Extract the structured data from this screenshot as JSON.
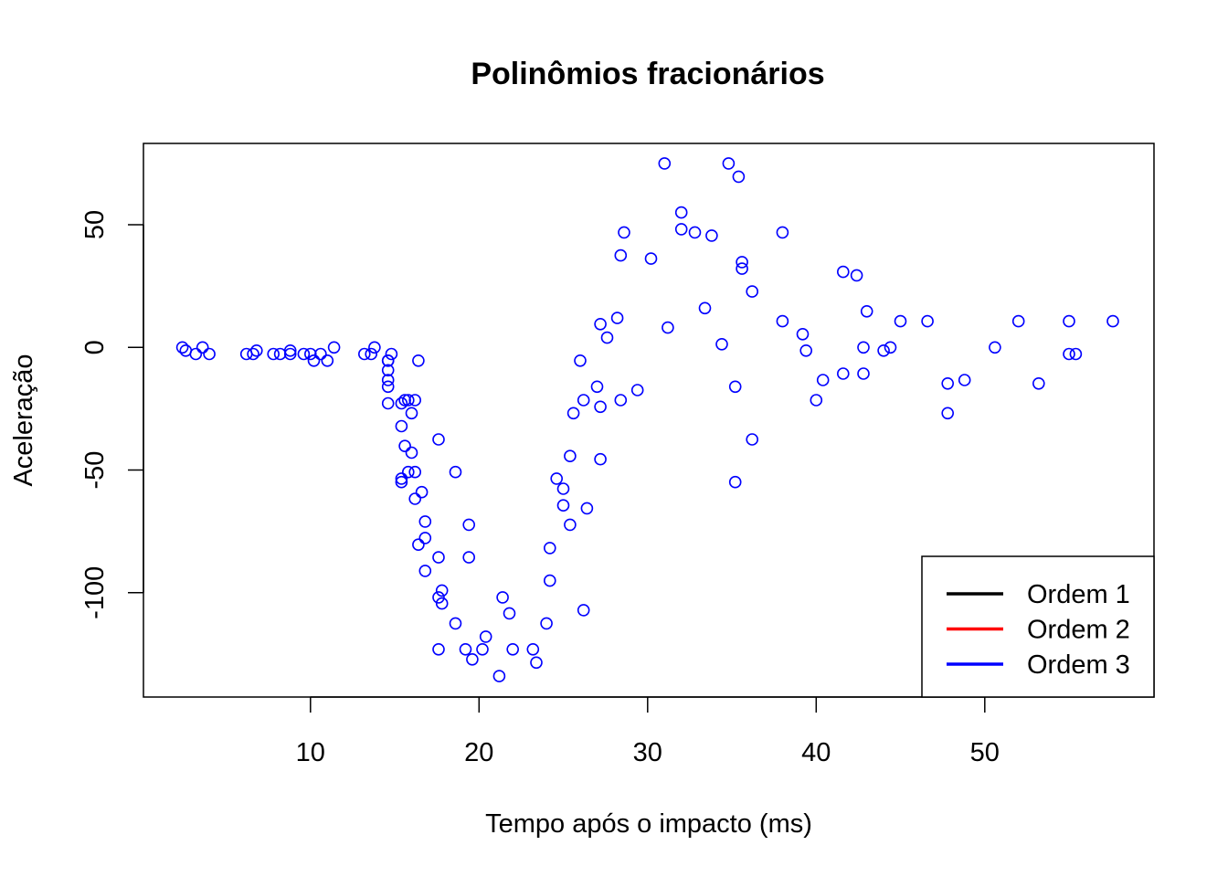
{
  "chart_data": {
    "type": "scatter",
    "title": "Polinômios fracionários",
    "xlabel": "Tempo após o impacto (ms)",
    "ylabel": "Aceleração",
    "xlim": [
      0,
      60
    ],
    "ylim": [
      -140,
      80
    ],
    "x_ticks": [
      10,
      20,
      30,
      40,
      50
    ],
    "y_ticks": [
      50,
      0,
      -50,
      -100
    ],
    "grid": false,
    "point_color": "#0000FF",
    "legend": {
      "position": "bottom-right",
      "entries": [
        {
          "label": "Ordem 1",
          "color": "#000000"
        },
        {
          "label": "Ordem 2",
          "color": "#FF0000"
        },
        {
          "label": "Ordem 3",
          "color": "#0000FF"
        }
      ]
    },
    "points": [
      [
        2.4,
        0.0
      ],
      [
        2.6,
        -1.3
      ],
      [
        3.2,
        -2.7
      ],
      [
        3.6,
        0.0
      ],
      [
        4.0,
        -2.7
      ],
      [
        6.2,
        -2.7
      ],
      [
        6.6,
        -2.7
      ],
      [
        6.8,
        -1.3
      ],
      [
        7.8,
        -2.7
      ],
      [
        8.2,
        -2.7
      ],
      [
        8.8,
        -1.3
      ],
      [
        8.8,
        -2.7
      ],
      [
        9.6,
        -2.7
      ],
      [
        10.0,
        -2.7
      ],
      [
        10.2,
        -5.4
      ],
      [
        10.6,
        -2.7
      ],
      [
        11.0,
        -5.4
      ],
      [
        11.4,
        0.0
      ],
      [
        13.2,
        -2.7
      ],
      [
        13.6,
        -2.7
      ],
      [
        13.8,
        0.0
      ],
      [
        14.6,
        -13.3
      ],
      [
        14.6,
        -5.4
      ],
      [
        14.6,
        -5.4
      ],
      [
        14.6,
        -9.3
      ],
      [
        14.6,
        -16.0
      ],
      [
        14.6,
        -22.8
      ],
      [
        14.8,
        -2.7
      ],
      [
        15.4,
        -22.8
      ],
      [
        15.4,
        -32.1
      ],
      [
        15.4,
        -53.5
      ],
      [
        15.4,
        -54.9
      ],
      [
        15.6,
        -40.2
      ],
      [
        15.6,
        -21.5
      ],
      [
        15.8,
        -21.5
      ],
      [
        15.8,
        -50.8
      ],
      [
        16.0,
        -42.9
      ],
      [
        16.0,
        -26.8
      ],
      [
        16.2,
        -21.5
      ],
      [
        16.2,
        -50.8
      ],
      [
        16.2,
        -61.7
      ],
      [
        16.4,
        -5.4
      ],
      [
        16.4,
        -80.4
      ],
      [
        16.6,
        -59.0
      ],
      [
        16.8,
        -71.0
      ],
      [
        16.8,
        -77.7
      ],
      [
        16.8,
        -91.1
      ],
      [
        17.6,
        -37.5
      ],
      [
        17.6,
        -85.6
      ],
      [
        17.6,
        -101.9
      ],
      [
        17.6,
        -123.1
      ],
      [
        17.8,
        -99.1
      ],
      [
        17.8,
        -104.4
      ],
      [
        18.6,
        -50.8
      ],
      [
        18.6,
        -112.5
      ],
      [
        19.2,
        -123.1
      ],
      [
        19.4,
        -72.3
      ],
      [
        19.4,
        -85.6
      ],
      [
        19.6,
        -127.2
      ],
      [
        20.2,
        -123.1
      ],
      [
        20.4,
        -117.9
      ],
      [
        21.2,
        -134.0
      ],
      [
        21.4,
        -101.9
      ],
      [
        21.8,
        -108.4
      ],
      [
        22.0,
        -123.1
      ],
      [
        23.2,
        -123.1
      ],
      [
        23.4,
        -128.5
      ],
      [
        24.0,
        -112.5
      ],
      [
        24.2,
        -81.8
      ],
      [
        24.2,
        -95.1
      ],
      [
        24.6,
        -53.5
      ],
      [
        25.0,
        -57.6
      ],
      [
        25.0,
        -64.4
      ],
      [
        25.4,
        -72.3
      ],
      [
        25.4,
        -44.3
      ],
      [
        25.6,
        -26.8
      ],
      [
        26.0,
        -5.4
      ],
      [
        26.2,
        -21.5
      ],
      [
        26.2,
        -107.1
      ],
      [
        26.4,
        -65.6
      ],
      [
        27.0,
        -16.0
      ],
      [
        27.2,
        9.5
      ],
      [
        27.2,
        -24.2
      ],
      [
        27.2,
        -45.6
      ],
      [
        27.6,
        4.0
      ],
      [
        28.2,
        12.0
      ],
      [
        28.4,
        37.5
      ],
      [
        28.4,
        -21.5
      ],
      [
        28.6,
        46.9
      ],
      [
        29.4,
        -17.4
      ],
      [
        30.2,
        36.2
      ],
      [
        31.0,
        75.0
      ],
      [
        31.2,
        8.1
      ],
      [
        32.0,
        55.0
      ],
      [
        32.0,
        48.2
      ],
      [
        32.8,
        46.9
      ],
      [
        33.4,
        16.0
      ],
      [
        33.8,
        45.6
      ],
      [
        34.4,
        1.3
      ],
      [
        34.8,
        75.0
      ],
      [
        35.2,
        -16.0
      ],
      [
        35.2,
        -54.9
      ],
      [
        35.4,
        69.6
      ],
      [
        35.6,
        34.8
      ],
      [
        35.6,
        32.1
      ],
      [
        36.2,
        22.8
      ],
      [
        36.2,
        -37.5
      ],
      [
        38.0,
        46.9
      ],
      [
        38.0,
        10.7
      ],
      [
        39.2,
        5.4
      ],
      [
        39.4,
        -1.3
      ],
      [
        40.0,
        -21.5
      ],
      [
        40.4,
        -13.3
      ],
      [
        41.6,
        30.8
      ],
      [
        41.6,
        -10.7
      ],
      [
        42.4,
        29.4
      ],
      [
        42.8,
        0.0
      ],
      [
        42.8,
        -10.7
      ],
      [
        43.0,
        14.7
      ],
      [
        44.0,
        -1.3
      ],
      [
        44.4,
        0.0
      ],
      [
        45.0,
        10.7
      ],
      [
        46.6,
        10.7
      ],
      [
        47.8,
        -14.7
      ],
      [
        47.8,
        -26.8
      ],
      [
        48.8,
        -13.3
      ],
      [
        50.6,
        0.0
      ],
      [
        52.0,
        10.7
      ],
      [
        53.2,
        -14.7
      ],
      [
        55.0,
        10.7
      ],
      [
        55.0,
        -2.7
      ],
      [
        55.4,
        -2.7
      ],
      [
        57.6,
        10.7
      ]
    ]
  }
}
